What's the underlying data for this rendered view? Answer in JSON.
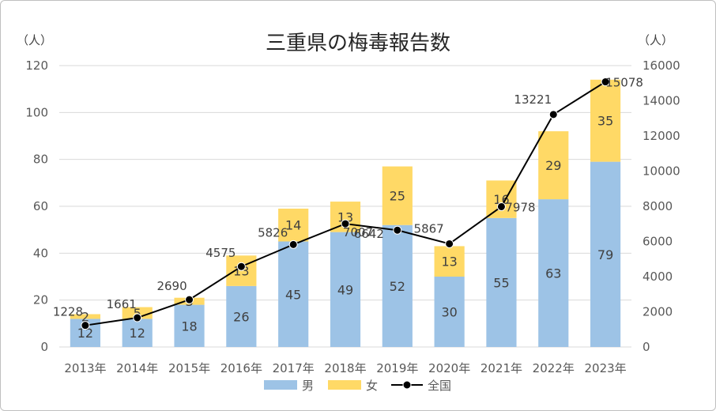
{
  "chart_data": {
    "type": "bar",
    "title": "三重県の梅毒報告数",
    "y_left_unit": "（人）",
    "y_right_unit": "（人）",
    "categories": [
      "2013年",
      "2014年",
      "2015年",
      "2016年",
      "2017年",
      "2018年",
      "2019年",
      "2020年",
      "2021年",
      "2022年",
      "2023年"
    ],
    "series": [
      {
        "name": "男",
        "kind": "stacked-bar",
        "axis": "left",
        "color": "#9DC3E6",
        "values": [
          12,
          12,
          18,
          26,
          45,
          49,
          52,
          30,
          55,
          63,
          79
        ]
      },
      {
        "name": "女",
        "kind": "stacked-bar",
        "axis": "left",
        "color": "#FFD966",
        "values": [
          2,
          5,
          3,
          13,
          14,
          13,
          25,
          13,
          16,
          29,
          35
        ]
      },
      {
        "name": "全国",
        "kind": "line",
        "axis": "right",
        "color": "#000000",
        "values": [
          1228,
          1661,
          2690,
          4575,
          5826,
          7007,
          6642,
          5867,
          7978,
          13221,
          15078
        ]
      }
    ],
    "y_left_range": [
      0,
      120
    ],
    "y_left_ticks": [
      "0",
      "20",
      "40",
      "60",
      "80",
      "100",
      "120"
    ],
    "y_right_range": [
      0,
      16000
    ],
    "y_right_ticks": [
      "0",
      "2000",
      "4000",
      "6000",
      "8000",
      "10000",
      "12000",
      "14000",
      "16000"
    ],
    "grid": true,
    "legend_position": "bottom"
  }
}
